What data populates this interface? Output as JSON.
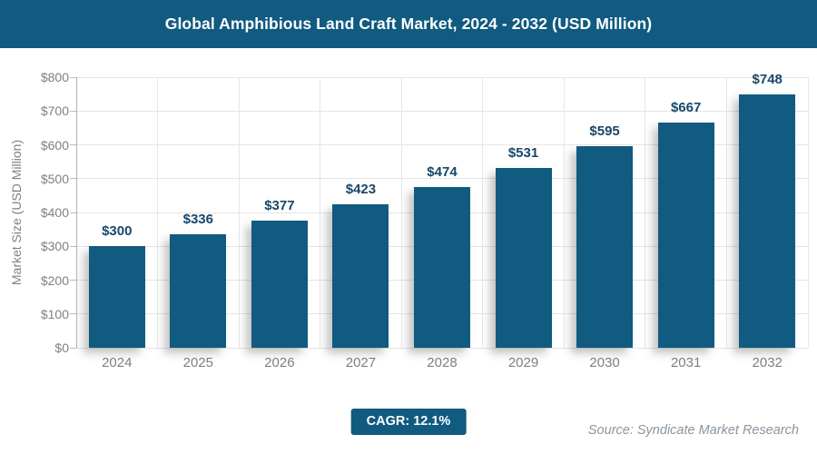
{
  "header": {
    "title": "Global Amphibious Land Craft Market, 2024 - 2032 (USD Million)"
  },
  "chart_data": {
    "type": "bar",
    "title": "Global Amphibious Land Craft Market, 2024 - 2032 (USD Million)",
    "categories": [
      "2024",
      "2025",
      "2026",
      "2027",
      "2028",
      "2029",
      "2030",
      "2031",
      "2032"
    ],
    "values": [
      300,
      336,
      377,
      423,
      474,
      531,
      595,
      667,
      748
    ],
    "value_labels": [
      "$300",
      "$336",
      "$377",
      "$423",
      "$474",
      "$531",
      "$595",
      "$667",
      "$748"
    ],
    "xlabel": "",
    "ylabel": "Market Size (USD Million)",
    "ylim": [
      0,
      800
    ],
    "ytick_step": 100,
    "ytick_labels": [
      "$0",
      "$100",
      "$200",
      "$300",
      "$400",
      "$500",
      "$600",
      "$700",
      "$800"
    ],
    "grid": true,
    "legend": false,
    "bar_color": "#115a80",
    "value_label_color": "#17476b"
  },
  "footer": {
    "cagr_label": "CAGR: 12.1%",
    "source": "Source: Syndicate Market Research"
  },
  "colors": {
    "accent": "#115a80",
    "header_bg": "#115a80",
    "axis_text": "#808080",
    "grid": "#e4e4e4"
  }
}
